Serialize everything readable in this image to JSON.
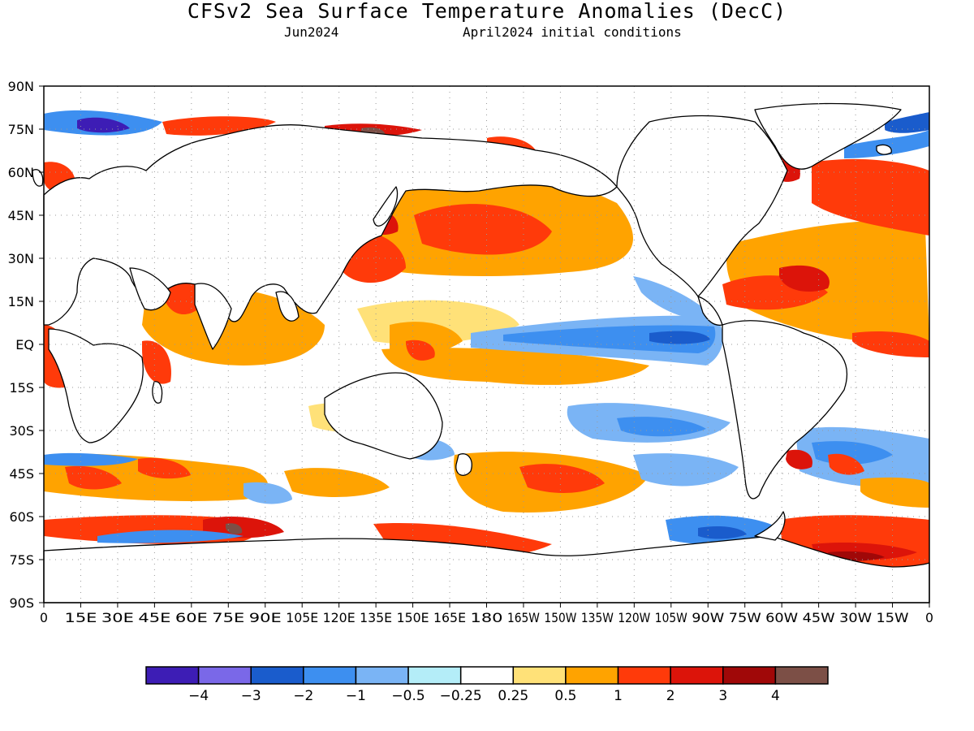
{
  "header": {
    "title": "CFSv2 Sea Surface Temperature Anomalies (DecC)",
    "valid_month": "Jun2024",
    "initial_conditions": "April2024 initial conditions"
  },
  "map": {
    "projection": "equirectangular",
    "lon_range": [
      0,
      360
    ],
    "lat_range": [
      -90,
      90
    ],
    "grid": "dotted",
    "lat_tick_labels": [
      "90N",
      "75N",
      "60N",
      "45N",
      "30N",
      "15N",
      "EQ",
      "15S",
      "30S",
      "45S",
      "60S",
      "75S",
      "90S"
    ],
    "lon_tick_labels": [
      "0",
      "15E",
      "30E",
      "45E",
      "60E",
      "75E",
      "90E",
      "105E",
      "120E",
      "135E",
      "150E",
      "165E",
      "180",
      "165W",
      "150W",
      "135W",
      "120W",
      "105W",
      "90W",
      "75W",
      "60W",
      "45W",
      "30W",
      "15W",
      "0"
    ],
    "land_color": "#ffffff",
    "coastline_color": "#000000"
  },
  "colorbar": {
    "colors": [
      "#3d1db5",
      "#7a68e8",
      "#1a5ccc",
      "#3d8ff0",
      "#7ab4f5",
      "#b4edf8",
      "#ffffff",
      "#ffe178",
      "#ffa300",
      "#ff3a0a",
      "#dc140a",
      "#a00808",
      "#7c4f46"
    ],
    "labels": [
      "−4",
      "−3",
      "−2",
      "−1",
      "−0.5",
      "−0.25",
      "0.25",
      "0.5",
      "1",
      "2",
      "3",
      "4"
    ]
  }
}
